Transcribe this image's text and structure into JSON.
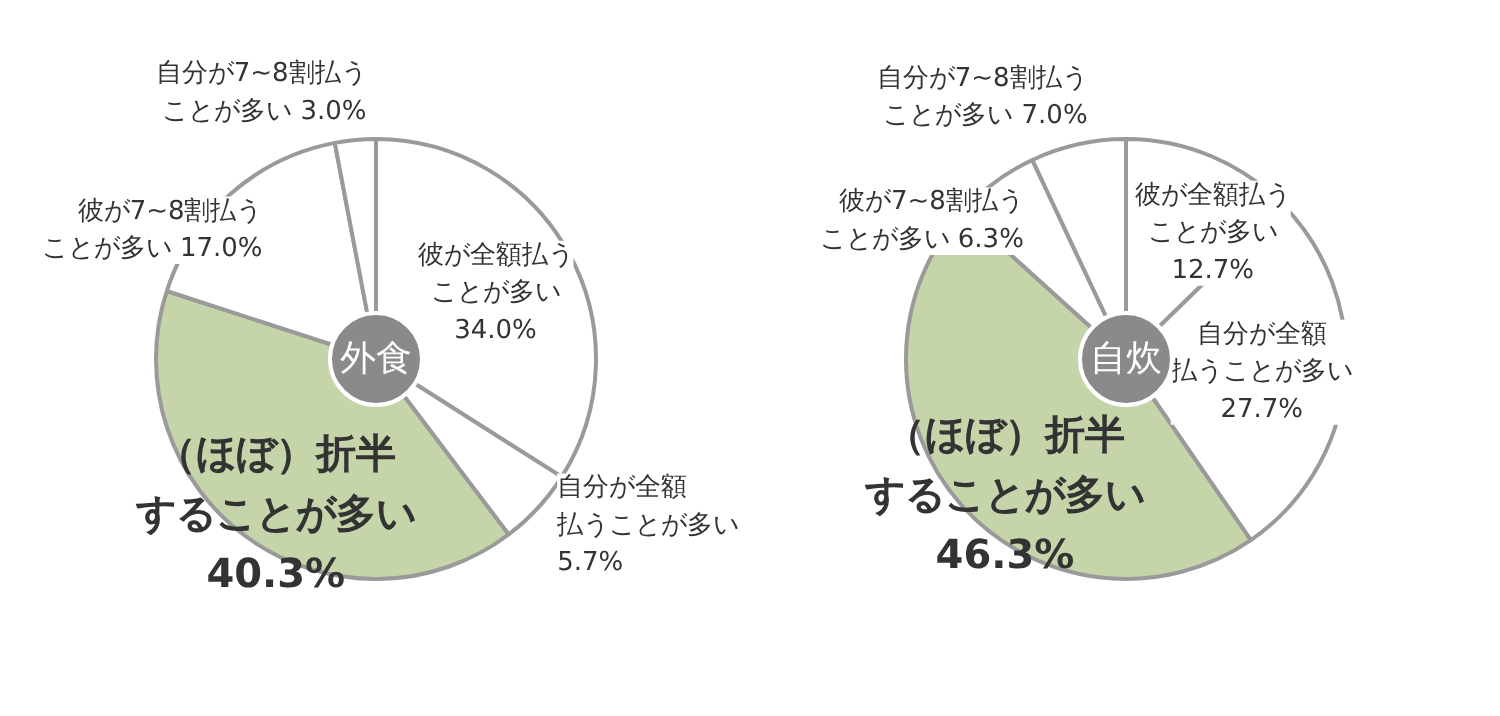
{
  "chart_data": [
    {
      "type": "donut",
      "title": "外食",
      "categories": [
        "彼が全額払うことが多い",
        "自分が全額払うことが多い",
        "（ほぼ）折半することが多い",
        "彼が7~8割払うことが多い",
        "自分が7~8割払うことが多い"
      ],
      "values": [
        34.0,
        5.7,
        40.3,
        17.0,
        3.0
      ],
      "colors": [
        "#ffffff",
        "#ffffff",
        "#c5d4a9",
        "#ffffff",
        "#ffffff"
      ],
      "value_labels": [
        "34.0%",
        "5.7%",
        "40.3%",
        "17.0%",
        "3.0%"
      ]
    },
    {
      "type": "donut",
      "title": "自炊",
      "categories": [
        "彼が全額払うことが多い",
        "自分が全額払うことが多い",
        "（ほぼ）折半することが多い",
        "彼が7~8割払うことが多い",
        "自分が7~8割払うことが多い"
      ],
      "values": [
        12.7,
        27.7,
        46.3,
        6.3,
        7.0
      ],
      "colors": [
        "#ffffff",
        "#ffffff",
        "#c5d4a9",
        "#ffffff",
        "#ffffff"
      ],
      "value_labels": [
        "12.7%",
        "27.7%",
        "46.3%",
        "6.3%",
        "7.0%"
      ]
    }
  ]
}
